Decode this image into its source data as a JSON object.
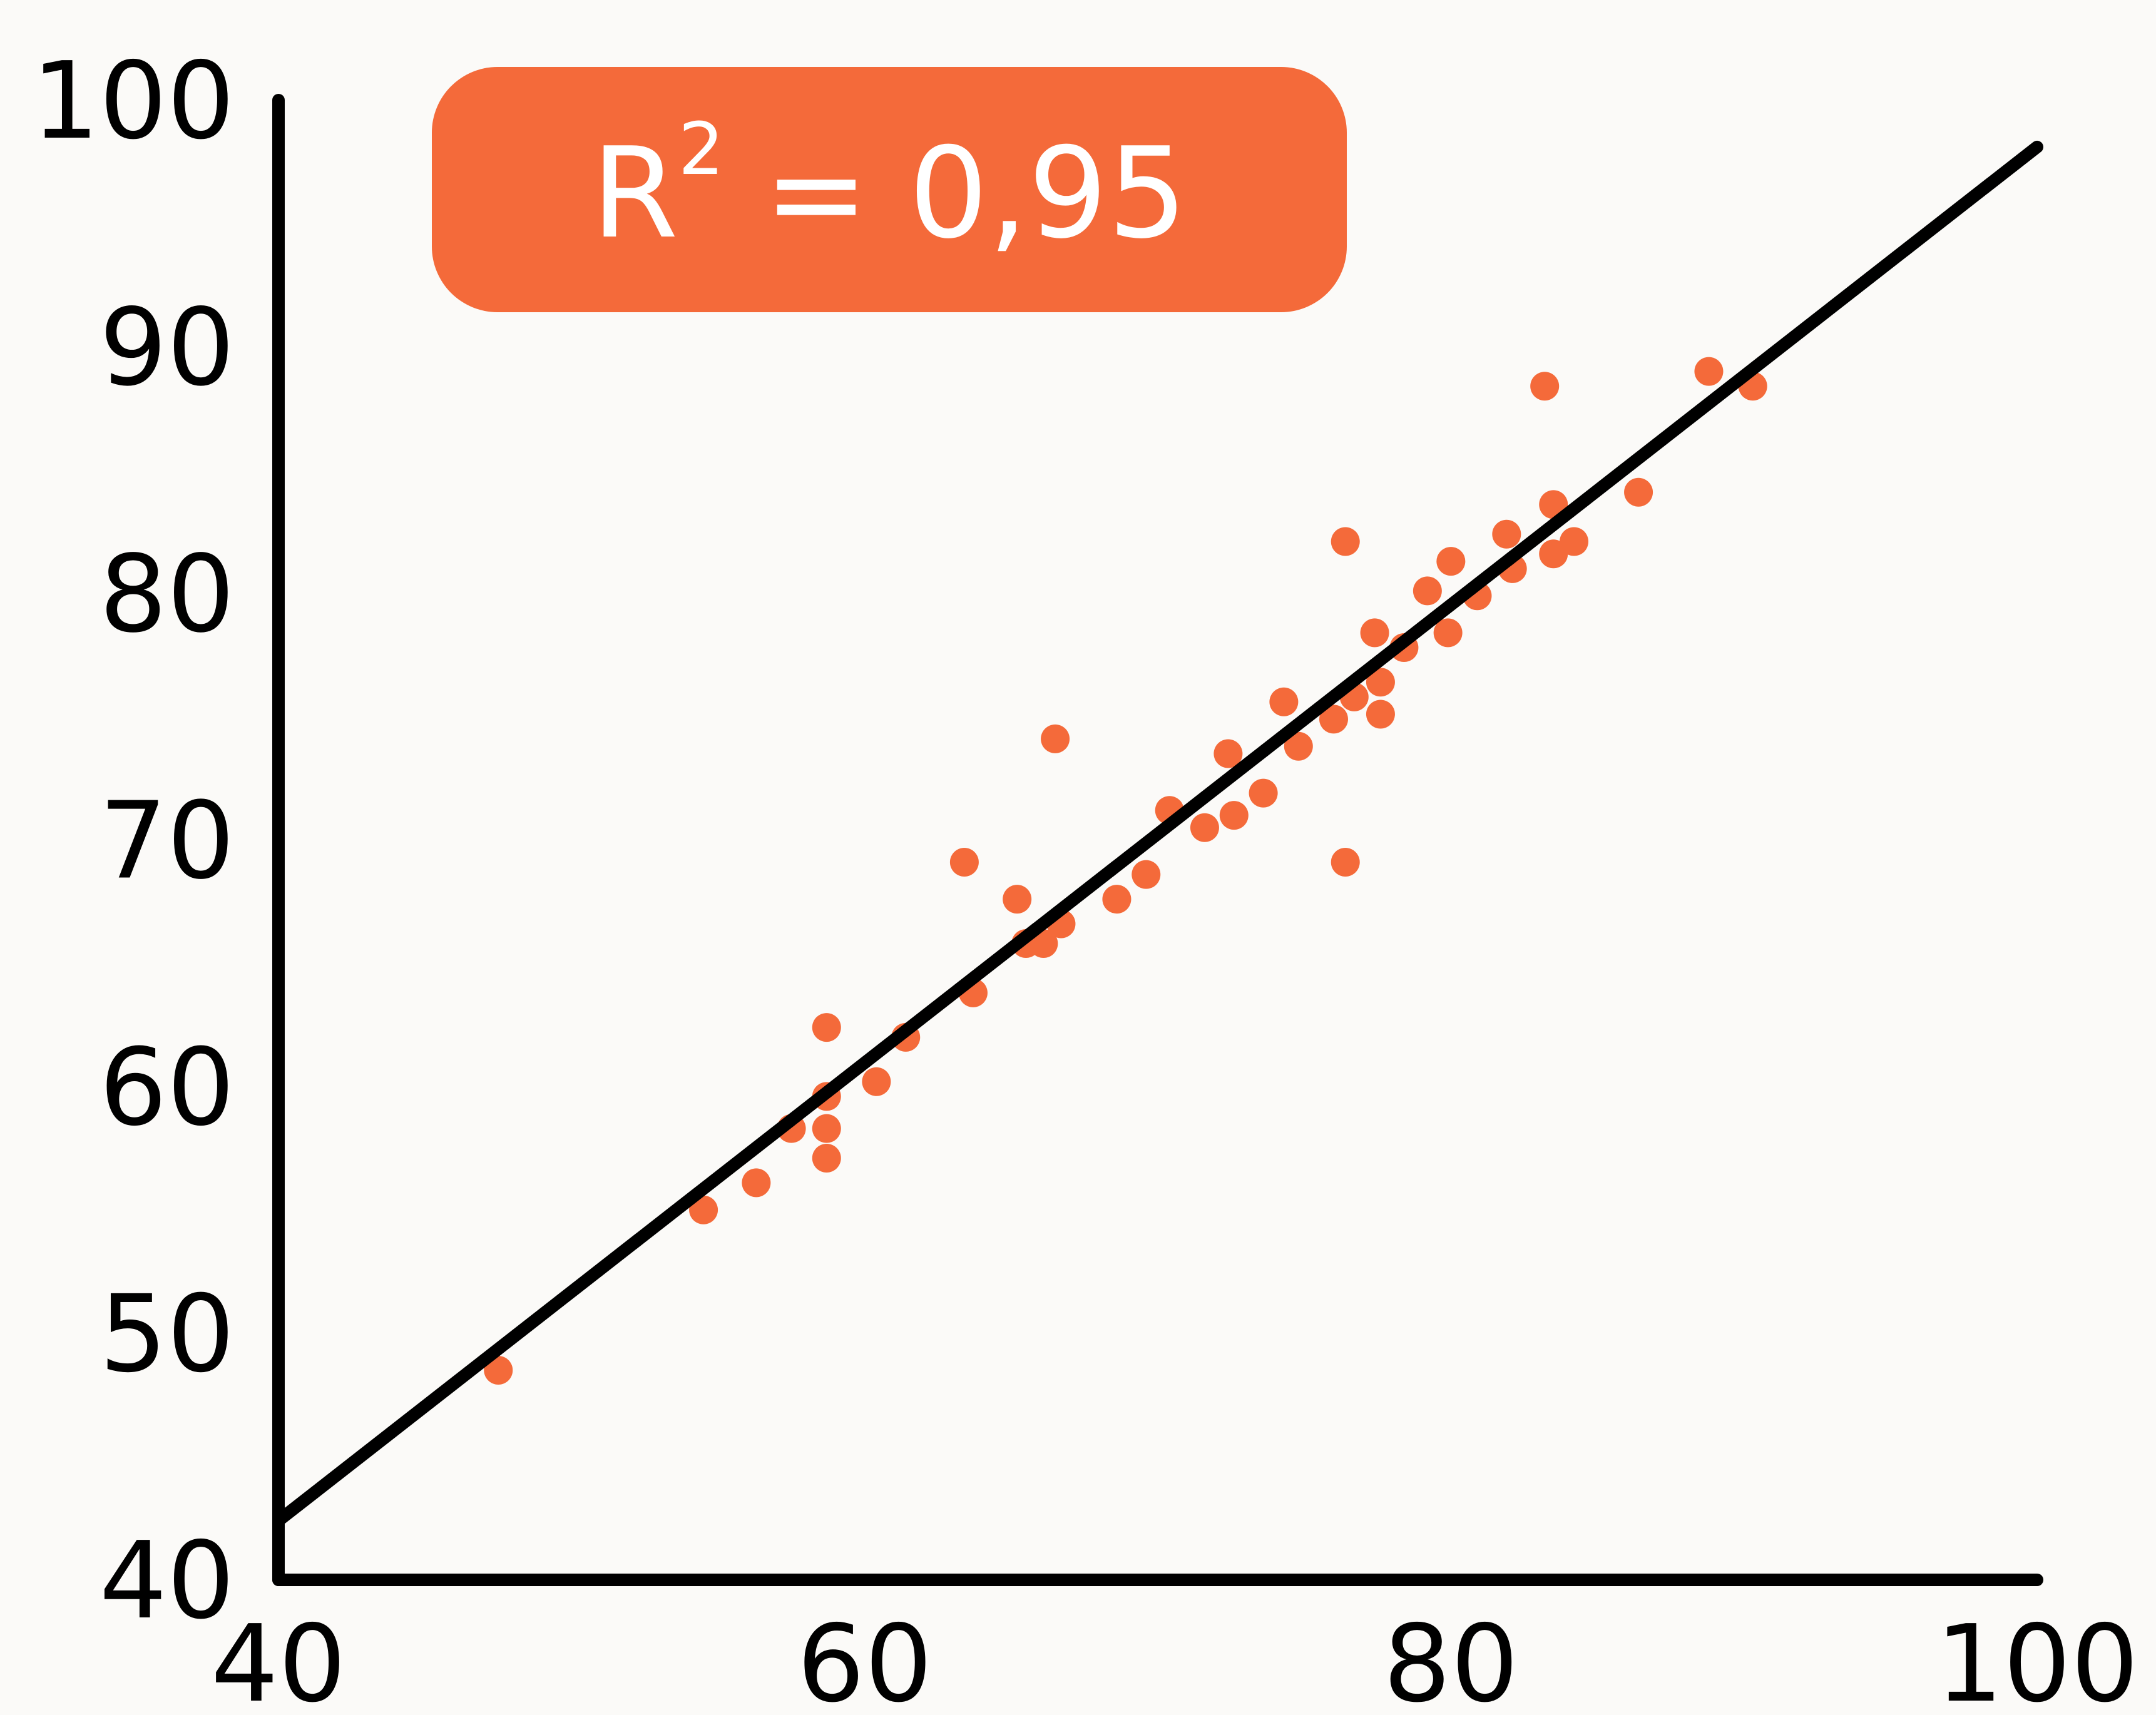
{
  "chart_data": {
    "type": "scatter",
    "title": "",
    "xlabel": "",
    "ylabel": "",
    "xlim": [
      40,
      100
    ],
    "ylim": [
      40,
      100
    ],
    "xticks": [
      "40",
      "60",
      "80",
      "100"
    ],
    "yticks": [
      "40",
      "50",
      "60",
      "70",
      "80",
      "90",
      "100"
    ],
    "grid": false,
    "colors": {
      "point": "#f46a3a",
      "line": "#000000",
      "badge": "#f46a3a",
      "badge_text": "#ffffff"
    },
    "annotation": {
      "base": "R",
      "sup": "2",
      "rest": " = 0,95"
    },
    "trendline": {
      "x": [
        40,
        100
      ],
      "y": [
        42.4,
        98.1
      ]
    },
    "points": [
      [
        47.5,
        48.5
      ],
      [
        54.5,
        55
      ],
      [
        56.3,
        56.1
      ],
      [
        57.5,
        58.3
      ],
      [
        58.7,
        62.4
      ],
      [
        58.7,
        59.6
      ],
      [
        58.7,
        58.3
      ],
      [
        58.7,
        57.1
      ],
      [
        60.4,
        60.2
      ],
      [
        61.4,
        62
      ],
      [
        63.4,
        69.1
      ],
      [
        63.7,
        63.8
      ],
      [
        65.2,
        67.6
      ],
      [
        65.5,
        65.8
      ],
      [
        66.1,
        65.8
      ],
      [
        66.5,
        74.1
      ],
      [
        66.7,
        66.6
      ],
      [
        68.6,
        67.6
      ],
      [
        69.6,
        68.6
      ],
      [
        70.4,
        71.2
      ],
      [
        71.6,
        70.5
      ],
      [
        72.4,
        73.5
      ],
      [
        72.6,
        71
      ],
      [
        73.6,
        71.9
      ],
      [
        74.3,
        75.6
      ],
      [
        74.8,
        73.8
      ],
      [
        76,
        74.9
      ],
      [
        76.4,
        82.1
      ],
      [
        76.4,
        69.1
      ],
      [
        76.7,
        75.8
      ],
      [
        77.4,
        78.4
      ],
      [
        77.6,
        76.4
      ],
      [
        77.6,
        75.1
      ],
      [
        78.4,
        77.8
      ],
      [
        79.2,
        80.1
      ],
      [
        79.9,
        78.4
      ],
      [
        80,
        81.3
      ],
      [
        80.9,
        79.9
      ],
      [
        81.9,
        82.4
      ],
      [
        82.1,
        81
      ],
      [
        83.2,
        88.4
      ],
      [
        83.5,
        83.6
      ],
      [
        83.5,
        81.6
      ],
      [
        84.2,
        82.1
      ],
      [
        86.4,
        84.1
      ],
      [
        88.8,
        89
      ],
      [
        90.3,
        88.4
      ]
    ]
  }
}
